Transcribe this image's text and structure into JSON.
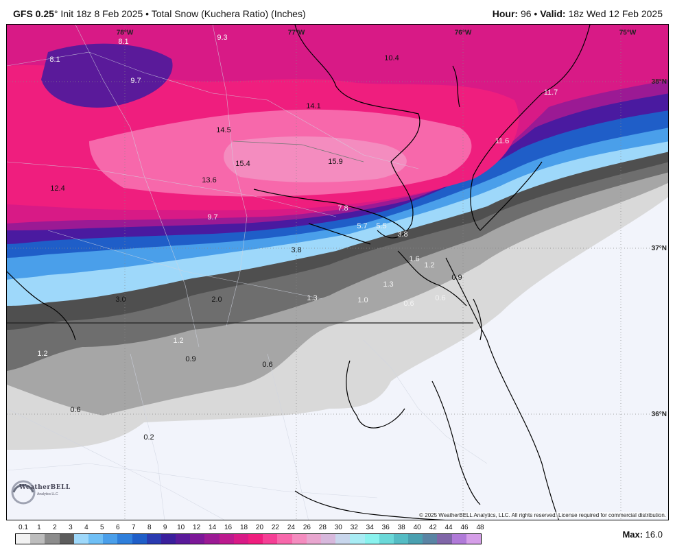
{
  "header": {
    "model": "GFS 0.25",
    "degree": "°",
    "init": " Init 18z 8 Feb 2025",
    "sep": " • ",
    "product": "Total Snow (Kuchera Ratio) (Inches)",
    "hour_label": "Hour:",
    "hour_value": " 96",
    "valid_label": "Valid:",
    "valid_value": " 18z Wed 12 Feb 2025"
  },
  "map": {
    "longitude_labels": [
      "78°W",
      "77°W",
      "76°W",
      "75°W"
    ],
    "latitude_labels": [
      "38°N",
      "37°N",
      "36°N"
    ],
    "value_labels": [
      {
        "text": "8.1"
      },
      {
        "text": "9.3"
      },
      {
        "text": "8.1"
      },
      {
        "text": "9.7"
      },
      {
        "text": "10.4"
      },
      {
        "text": "11.7"
      },
      {
        "text": "14.1"
      },
      {
        "text": "14.5"
      },
      {
        "text": "11.6"
      },
      {
        "text": "15.4"
      },
      {
        "text": "15.9"
      },
      {
        "text": "12.4"
      },
      {
        "text": "13.6"
      },
      {
        "text": "7.8"
      },
      {
        "text": "9.7"
      },
      {
        "text": "5.7"
      },
      {
        "text": "5.5"
      },
      {
        "text": "3.8"
      },
      {
        "text": "3.8"
      },
      {
        "text": "1.6"
      },
      {
        "text": "1.2"
      },
      {
        "text": "0.9"
      },
      {
        "text": "1.3"
      },
      {
        "text": "3.0"
      },
      {
        "text": "2.0"
      },
      {
        "text": "1.3"
      },
      {
        "text": "1.0"
      },
      {
        "text": "0.6"
      },
      {
        "text": "0.6"
      },
      {
        "text": "1.2"
      },
      {
        "text": "1.2"
      },
      {
        "text": "0.9"
      },
      {
        "text": "0.6"
      },
      {
        "text": "0.6"
      },
      {
        "text": "0.2"
      }
    ],
    "logo_text": "WeatherBELL",
    "logo_sub": "Analytics LLC",
    "copyright": "© 2025 WeatherBELL Analytics, LLC. All rights reserved. License required for commercial distribution."
  },
  "legend": {
    "ticks": [
      "0.1",
      "1",
      "2",
      "3",
      "4",
      "5",
      "6",
      "7",
      "8",
      "9",
      "10",
      "12",
      "14",
      "16",
      "18",
      "20",
      "22",
      "24",
      "26",
      "28",
      "30",
      "32",
      "34",
      "36",
      "38",
      "40",
      "42",
      "44",
      "46",
      "48"
    ],
    "colors": [
      "#f2f2f2",
      "#bdbdbd",
      "#8c8c8c",
      "#5c5c5c",
      "#9ed8fa",
      "#6fbff5",
      "#4a9fea",
      "#2f7fdb",
      "#1f5ec8",
      "#2a3ab0",
      "#3a1f9c",
      "#5a1a9a",
      "#7c1898",
      "#9b1a94",
      "#bc1a8e",
      "#d81a86",
      "#ef1e7e",
      "#f53f95",
      "#f768ab",
      "#f48cbf",
      "#e8a6cf",
      "#d7b8dc",
      "#c8d6ec",
      "#a8ecf4",
      "#8af2ee",
      "#6ad8d8",
      "#54bcc4",
      "#4aa0b0",
      "#5a84a4",
      "#8066a8",
      "#b07ad8",
      "#d59ee8"
    ],
    "max_label": "Max:",
    "max_value": " 16.0"
  }
}
